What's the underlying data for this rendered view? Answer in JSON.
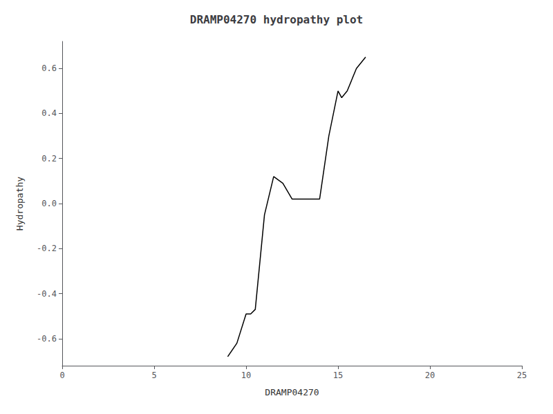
{
  "chart_data": {
    "type": "line",
    "title": "DRAMP04270 hydropathy plot",
    "xlabel": "DRAMP04270",
    "ylabel": "Hydropathy",
    "x": [
      9.0,
      9.5,
      10.0,
      10.25,
      10.5,
      11.0,
      11.5,
      12.0,
      12.5,
      13.0,
      13.5,
      14.0,
      14.5,
      15.0,
      15.2,
      15.5,
      16.0,
      16.5
    ],
    "values": [
      -0.68,
      -0.62,
      -0.49,
      -0.49,
      -0.47,
      -0.05,
      0.12,
      0.09,
      0.02,
      0.02,
      0.02,
      0.02,
      0.3,
      0.5,
      0.47,
      0.5,
      0.6,
      0.65
    ],
    "color": "#000000",
    "xlim": [
      0,
      25
    ],
    "xticks": [
      0,
      5,
      10,
      15,
      20,
      25
    ],
    "ylim": [
      -0.72,
      0.72
    ],
    "yticks": [
      -0.6,
      -0.4,
      -0.2,
      {
        "value": 0.0,
        "label": "0.0"
      },
      0.2,
      0.4,
      0.6
    ],
    "grid": false
  }
}
